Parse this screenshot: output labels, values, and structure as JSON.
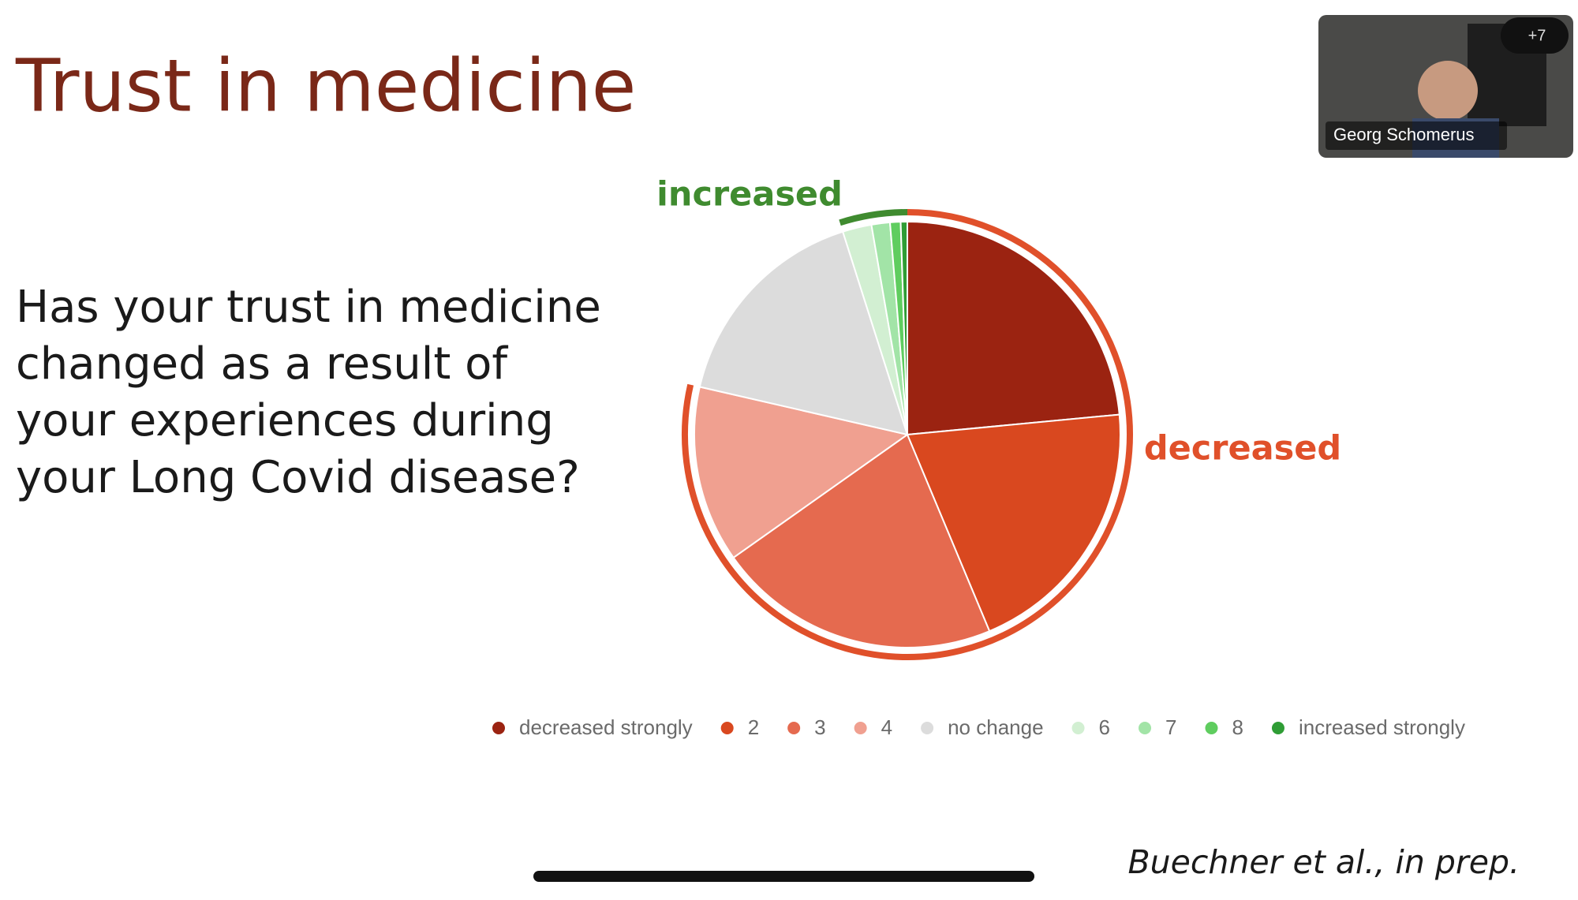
{
  "header": {
    "title": "Trust in medicine"
  },
  "question": {
    "lines": [
      "Has your trust in medicine",
      "changed as a result of",
      "your experiences during",
      "your Long Covid disease?"
    ]
  },
  "chart_data": {
    "type": "pie",
    "categories": [
      "decreased strongly",
      "2",
      "3",
      "4",
      "no change",
      "6",
      "7",
      "8",
      "increased strongly"
    ],
    "values": [
      23.5,
      20.2,
      21.5,
      13.4,
      16.5,
      2.2,
      1.4,
      0.8,
      0.5
    ],
    "colors": [
      "#9b2311",
      "#d9481f",
      "#e56a4f",
      "#f0a090",
      "#dcdcdc",
      "#d2efd2",
      "#a2e4a7",
      "#5fcd5f",
      "#2f9d35"
    ],
    "annotations": [
      {
        "text": "decreased",
        "color": "#e0502a",
        "slices": [
          0,
          1,
          2,
          3
        ]
      },
      {
        "text": "increased",
        "color": "#3f8b2f",
        "slices": [
          5,
          6,
          7,
          8
        ]
      }
    ]
  },
  "citation": "Buechner et al., in prep.",
  "video_tile": {
    "name": "Georg Schomerus",
    "badge": "+7"
  }
}
